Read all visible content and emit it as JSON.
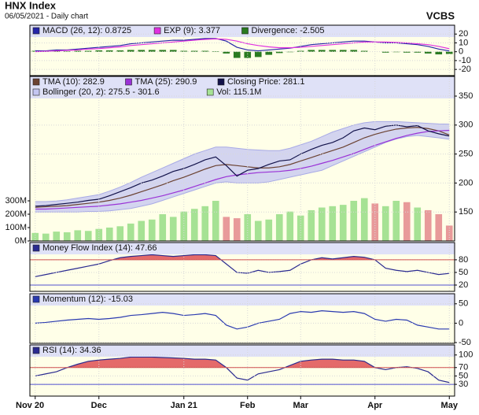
{
  "header": {
    "title": "HNX Index",
    "subtitle": "06/05/2021 - Daily chart",
    "brand": "VCBS"
  },
  "chart_data": [
    {
      "type": "line",
      "background": "#ffffe8",
      "legend_background": "#dfe1f7",
      "grid": true,
      "ylim": [
        -27,
        30
      ],
      "yticks": [
        20,
        10,
        0,
        -10,
        -20
      ],
      "series": [
        {
          "name": "MACD (26, 12): 0.8725",
          "color": "#2626a8",
          "values": [
            1,
            1,
            2,
            2,
            3,
            4,
            5,
            6,
            7,
            9,
            10,
            11,
            12,
            13,
            13,
            14,
            15,
            15,
            12,
            5,
            2,
            1,
            2,
            3,
            4,
            6,
            8,
            9,
            10,
            11,
            12,
            12,
            11,
            10,
            10,
            9,
            8,
            6,
            3,
            0.8725
          ]
        },
        {
          "name": "EXP (9): 3.377",
          "color": "#e030e0",
          "values": [
            0,
            0.5,
            1,
            1.5,
            2,
            3,
            3.5,
            4.5,
            5.5,
            7,
            8,
            9,
            10,
            11,
            12,
            13,
            14,
            14.5,
            14,
            12,
            9,
            7,
            5.5,
            4.5,
            4.5,
            5,
            6,
            7,
            8,
            9,
            10,
            11,
            11,
            11,
            10.5,
            10,
            9,
            8,
            6,
            3.377
          ]
        },
        {
          "name": "Divergence: -2.505",
          "type": "bar",
          "color": "#2a7a20",
          "values": [
            1,
            0.5,
            1,
            0.5,
            1,
            1,
            1.5,
            1.5,
            1.5,
            2,
            2,
            2,
            2,
            2,
            1,
            1,
            1,
            0.5,
            -2,
            -7,
            -7,
            -6,
            -3.5,
            -1.5,
            -0.5,
            1,
            2,
            2,
            2,
            2,
            2,
            1,
            0,
            -1,
            -0.5,
            -1,
            -1,
            -2,
            -3,
            -2.505
          ]
        }
      ]
    },
    {
      "type": "line",
      "background": "#ffffe8",
      "legend_background": "#dfe1f7",
      "grid": true,
      "ylim": [
        100,
        384
      ],
      "yticks": [
        150,
        200,
        250,
        300,
        350
      ],
      "y2lim": [
        0,
        1230
      ],
      "y2ticks": [
        {
          "value": 0,
          "label": "0M"
        },
        {
          "value": 100,
          "label": "100M"
        },
        {
          "value": 200,
          "label": "200M"
        },
        {
          "value": 300,
          "label": "300M"
        }
      ],
      "series": [
        {
          "name": "TMA (10): 282.9",
          "color": "#6b4232",
          "values": [
            158,
            159,
            160,
            161,
            163,
            165,
            167,
            170,
            174,
            179,
            185,
            191,
            197,
            204,
            210,
            217,
            224,
            230,
            232,
            230,
            228,
            226,
            226,
            228,
            232,
            238,
            244,
            250,
            256,
            262,
            270,
            278,
            284,
            289,
            293,
            295,
            296,
            294,
            290,
            282.9
          ]
        },
        {
          "name": "TMA (25): 290.9",
          "color": "#9a32d6",
          "values": [
            155,
            155,
            156,
            157,
            158,
            159,
            160,
            162,
            164,
            167,
            170,
            174,
            178,
            183,
            188,
            194,
            200,
            206,
            211,
            214,
            216,
            218,
            219,
            220,
            222,
            225,
            229,
            234,
            239,
            245,
            251,
            258,
            265,
            271,
            277,
            282,
            286,
            289,
            290,
            290.9
          ]
        },
        {
          "name": "Closing Price: 281.1",
          "color": "#12124a",
          "values": [
            160,
            161,
            163,
            165,
            167,
            170,
            172,
            178,
            185,
            192,
            200,
            205,
            212,
            220,
            225,
            232,
            240,
            245,
            230,
            212,
            222,
            225,
            232,
            238,
            240,
            250,
            258,
            265,
            270,
            278,
            290,
            295,
            292,
            298,
            300,
            297,
            299,
            290,
            285,
            281.1
          ]
        },
        {
          "name": "Bollinger (20, 2): 275.5 - 301.6",
          "type": "band",
          "color": "#c4c6f2",
          "upper": [
            168,
            168,
            169,
            171,
            174,
            177,
            180,
            186,
            193,
            201,
            210,
            218,
            226,
            234,
            242,
            250,
            256,
            262,
            262,
            260,
            258,
            257,
            256,
            256,
            260,
            266,
            272,
            280,
            288,
            294,
            300,
            304,
            306,
            306,
            306,
            305,
            304,
            303,
            302,
            301.6
          ],
          "lower": [
            150,
            150,
            150,
            150,
            150,
            151,
            151,
            152,
            154,
            156,
            160,
            164,
            170,
            176,
            182,
            188,
            194,
            200,
            202,
            200,
            200,
            200,
            202,
            206,
            210,
            214,
            218,
            222,
            230,
            238,
            246,
            254,
            262,
            270,
            276,
            280,
            282,
            280,
            278,
            275.5
          ]
        },
        {
          "name": "Vol: 115.1M",
          "type": "bar",
          "axis": "y2",
          "color": "#a6e294",
          "values": [
            60,
            55,
            70,
            65,
            80,
            75,
            90,
            100,
            110,
            130,
            150,
            160,
            200,
            180,
            220,
            240,
            260,
            300,
            180,
            170,
            200,
            150,
            160,
            200,
            220,
            190,
            230,
            250,
            260,
            270,
            300,
            320,
            280,
            260,
            300,
            290,
            250,
            230,
            200,
            115.1
          ],
          "colors": [
            "#a6e294",
            "#a6e294",
            "#a6e294",
            "#a6e294",
            "#a6e294",
            "#a6e294",
            "#a6e294",
            "#a6e294",
            "#a6e294",
            "#a6e294",
            "#a6e294",
            "#a6e294",
            "#a6e294",
            "#a6e294",
            "#a6e294",
            "#a6e294",
            "#a6e294",
            "#a6e294",
            "#e89a9a",
            "#e89a9a",
            "#a6e294",
            "#a6e294",
            "#a6e294",
            "#a6e294",
            "#a6e294",
            "#a6e294",
            "#a6e294",
            "#a6e294",
            "#a6e294",
            "#a6e294",
            "#a6e294",
            "#a6e294",
            "#e89a9a",
            "#a6e294",
            "#a6e294",
            "#e89a9a",
            "#a6e294",
            "#e89a9a",
            "#e89a9a",
            "#e89a9a"
          ]
        }
      ]
    },
    {
      "type": "line",
      "background": "#ffffe8",
      "legend_background": "#dfe1f7",
      "grid": true,
      "ylim": [
        5,
        121
      ],
      "yticks": [
        80,
        50,
        20
      ],
      "reference_lines": [
        {
          "value": 80,
          "color": "#d05050",
          "fill": "#e46a6a"
        },
        {
          "value": 20,
          "color": "#5050d0"
        }
      ],
      "series": [
        {
          "name": "Money Flow Index (14): 47.66",
          "color": "#2a2a90",
          "values": [
            40,
            45,
            50,
            55,
            60,
            65,
            70,
            78,
            85,
            88,
            90,
            92,
            90,
            88,
            90,
            92,
            92,
            90,
            70,
            50,
            48,
            55,
            50,
            52,
            55,
            70,
            80,
            85,
            82,
            85,
            88,
            86,
            80,
            60,
            55,
            52,
            55,
            50,
            45,
            47.66
          ]
        }
      ]
    },
    {
      "type": "line",
      "background": "#ffffe8",
      "legend_background": "#dfe1f7",
      "grid": true,
      "ylim": [
        -52,
        76
      ],
      "yticks": [
        50,
        0,
        -50
      ],
      "series": [
        {
          "name": "Momentum (12): -15.03",
          "color": "#2a3ab0",
          "values": [
            0,
            2,
            5,
            8,
            10,
            12,
            10,
            12,
            15,
            20,
            22,
            25,
            28,
            25,
            20,
            22,
            25,
            20,
            -5,
            -15,
            -10,
            0,
            5,
            10,
            25,
            30,
            28,
            32,
            30,
            28,
            30,
            25,
            10,
            5,
            10,
            8,
            -5,
            -10,
            -15,
            -15.03
          ]
        }
      ]
    },
    {
      "type": "line",
      "background": "#ffffe8",
      "legend_background": "#dfe1f7",
      "grid": true,
      "ylim": [
        2,
        124
      ],
      "yticks": [
        100,
        70,
        50,
        30
      ],
      "reference_lines": [
        {
          "value": 70,
          "color": "#d05050",
          "fill": "#e46a6a"
        },
        {
          "value": 30,
          "color": "#5050d0"
        }
      ],
      "categories": [
        "Nov 20",
        null,
        null,
        null,
        null,
        null,
        "Dec",
        null,
        null,
        null,
        null,
        null,
        null,
        null,
        "Jan 21",
        null,
        null,
        null,
        null,
        null,
        "Feb",
        null,
        null,
        null,
        null,
        "Mar",
        null,
        null,
        null,
        null,
        null,
        null,
        "Apr",
        null,
        null,
        null,
        null,
        null,
        null,
        "May"
      ],
      "series": [
        {
          "name": "RSI (14): 34.36",
          "color": "#2a2a90",
          "values": [
            50,
            55,
            60,
            70,
            78,
            85,
            88,
            90,
            92,
            95,
            95,
            95,
            94,
            93,
            92,
            90,
            90,
            88,
            70,
            45,
            40,
            55,
            60,
            65,
            75,
            85,
            88,
            90,
            90,
            88,
            88,
            85,
            70,
            65,
            70,
            72,
            68,
            60,
            40,
            34.36
          ]
        }
      ]
    }
  ]
}
